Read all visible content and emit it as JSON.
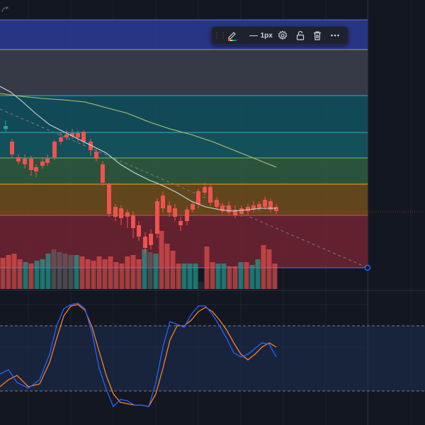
{
  "toolbar": {
    "line_width_label": "1px",
    "icons": [
      "drag-handle-icon",
      "pencil-icon",
      "line-style-icon",
      "gear-icon",
      "unlock-icon",
      "trash-icon",
      "more-icon"
    ]
  },
  "colors": {
    "background": "#131722",
    "bullish": "#26a69a",
    "bearish": "#ef5350",
    "ma_fast": "#cfd8dc",
    "ma_slow": "#b5c16d",
    "stoch_k": "#2962ff",
    "stoch_d": "#ff7f27",
    "accent": "#2962ff"
  },
  "fib_zones": [
    {
      "color": "#2a3a8f"
    },
    {
      "color": "#3a3e4a"
    },
    {
      "color": "#12505c"
    },
    {
      "color": "#155760"
    },
    {
      "color": "#2f5a3e"
    },
    {
      "color": "#6a4a1c"
    },
    {
      "color": "#6b2230"
    }
  ]
}
